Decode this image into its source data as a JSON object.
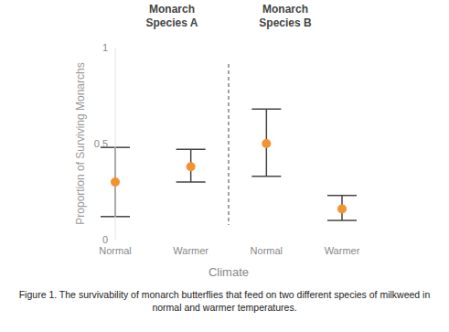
{
  "chart_data": {
    "type": "scatter",
    "caption": "Figure 1. The survivability of monarch butterflies that feed on two different species of milkweed in normal and warmer temperatures.",
    "x_label": "Climate",
    "y_label": "Proportion of Surviving Monarchs",
    "group_labels": [
      "Monarch Species A",
      "Monarch Species B"
    ],
    "categories": [
      "Normal",
      "Warmer",
      "Normal",
      "Warmer"
    ],
    "values": [
      0.3,
      0.38,
      0.5,
      0.16
    ],
    "error_low": [
      0.12,
      0.3,
      0.33,
      0.1
    ],
    "error_high": [
      0.48,
      0.47,
      0.68,
      0.23
    ],
    "color": "#f5922f",
    "marker": "circle",
    "ylim": [
      0,
      1
    ],
    "yticks": [
      0,
      0.5,
      1
    ]
  }
}
